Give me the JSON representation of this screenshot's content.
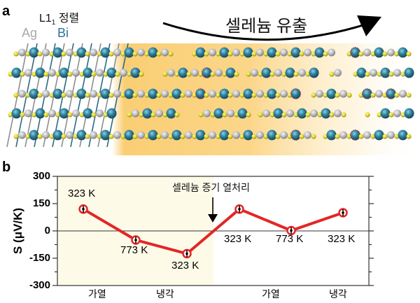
{
  "panel_a": {
    "label": "a",
    "ordering_label_main": "L1",
    "ordering_label_sub": "1",
    "ordering_label_suffix": "정렬",
    "element_ag": "Ag",
    "element_bi": "Bi",
    "arrow_label": "셀레늄 유출",
    "colors": {
      "ag": "#b9b9bd",
      "bi": "#2f7f9b",
      "se": "#e3d93a",
      "bond_ag": "#8d8d8d",
      "bond_bi": "#2a6a84",
      "glow": "#f9c860",
      "vacancy": "#e0202a"
    }
  },
  "panel_b": {
    "label": "b",
    "annotation": "셀레늄 증기 열처리",
    "x_groups": [
      "가열",
      "냉각",
      "가열",
      "냉각"
    ]
  },
  "chart_data": {
    "type": "line",
    "title": "",
    "xlabel": "",
    "ylabel": "S (μV/K)",
    "ylim": [
      -300,
      300
    ],
    "yticks": [
      -300,
      -150,
      0,
      150,
      300
    ],
    "grid": false,
    "zero_line": true,
    "annotation": {
      "text": "셀레늄 증기 열처리",
      "arrow": "down",
      "between_points": [
        3,
        4
      ]
    },
    "shaded_region": {
      "points": [
        1,
        2,
        3
      ],
      "color": "#fdfbe8",
      "meaning": "before selenium vapor treatment"
    },
    "series": [
      {
        "name": "S",
        "color": "#e32626",
        "points": [
          {
            "x": 1,
            "y": 120,
            "label": "323 K"
          },
          {
            "x": 2,
            "y": -50,
            "label": "773 K"
          },
          {
            "x": 3,
            "y": -125,
            "label": "323 K"
          },
          {
            "x": 4,
            "y": 120,
            "label": "323 K"
          },
          {
            "x": 5,
            "y": 2,
            "label": "773 K"
          },
          {
            "x": 6,
            "y": 100,
            "label": "323 K"
          }
        ]
      }
    ],
    "x_group_labels": [
      "가열",
      "냉각",
      "가열",
      "냉각"
    ]
  }
}
